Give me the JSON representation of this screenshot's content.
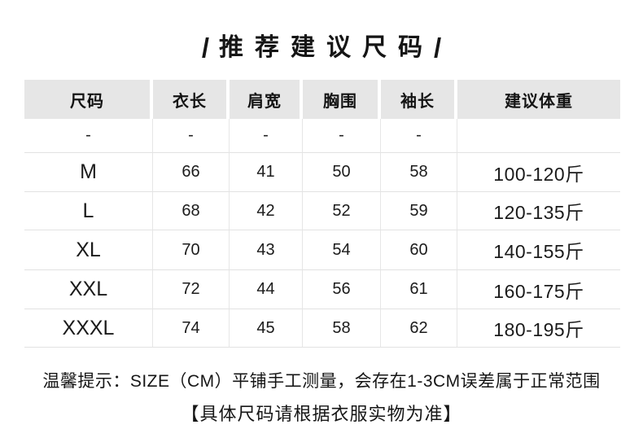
{
  "title": {
    "left_slash": "/",
    "text": "推荐建议尺码",
    "right_slash": "/"
  },
  "table": {
    "headers": [
      "尺码",
      "衣长",
      "肩宽",
      "胸围",
      "袖长",
      "建议体重"
    ],
    "rows": [
      [
        "-",
        "-",
        "-",
        "-",
        "-",
        ""
      ],
      [
        "M",
        "66",
        "41",
        "50",
        "58",
        "100-120斤"
      ],
      [
        "L",
        "68",
        "42",
        "52",
        "59",
        "120-135斤"
      ],
      [
        "XL",
        "70",
        "43",
        "54",
        "60",
        "140-155斤"
      ],
      [
        "XXL",
        "72",
        "44",
        "56",
        "61",
        "160-175斤"
      ],
      [
        "XXXL",
        "74",
        "45",
        "58",
        "62",
        "180-195斤"
      ]
    ]
  },
  "notes": {
    "line1": "温馨提示：SIZE（CM）平铺手工测量，会存在1-3CM误差属于正常范围",
    "line2": "【具体尺码请根据衣服实物为准】"
  },
  "colors": {
    "header_bg": "#e6e6e6",
    "grid_line": "#e2e2e2",
    "text": "#1b1b1b",
    "background": "#ffffff"
  }
}
